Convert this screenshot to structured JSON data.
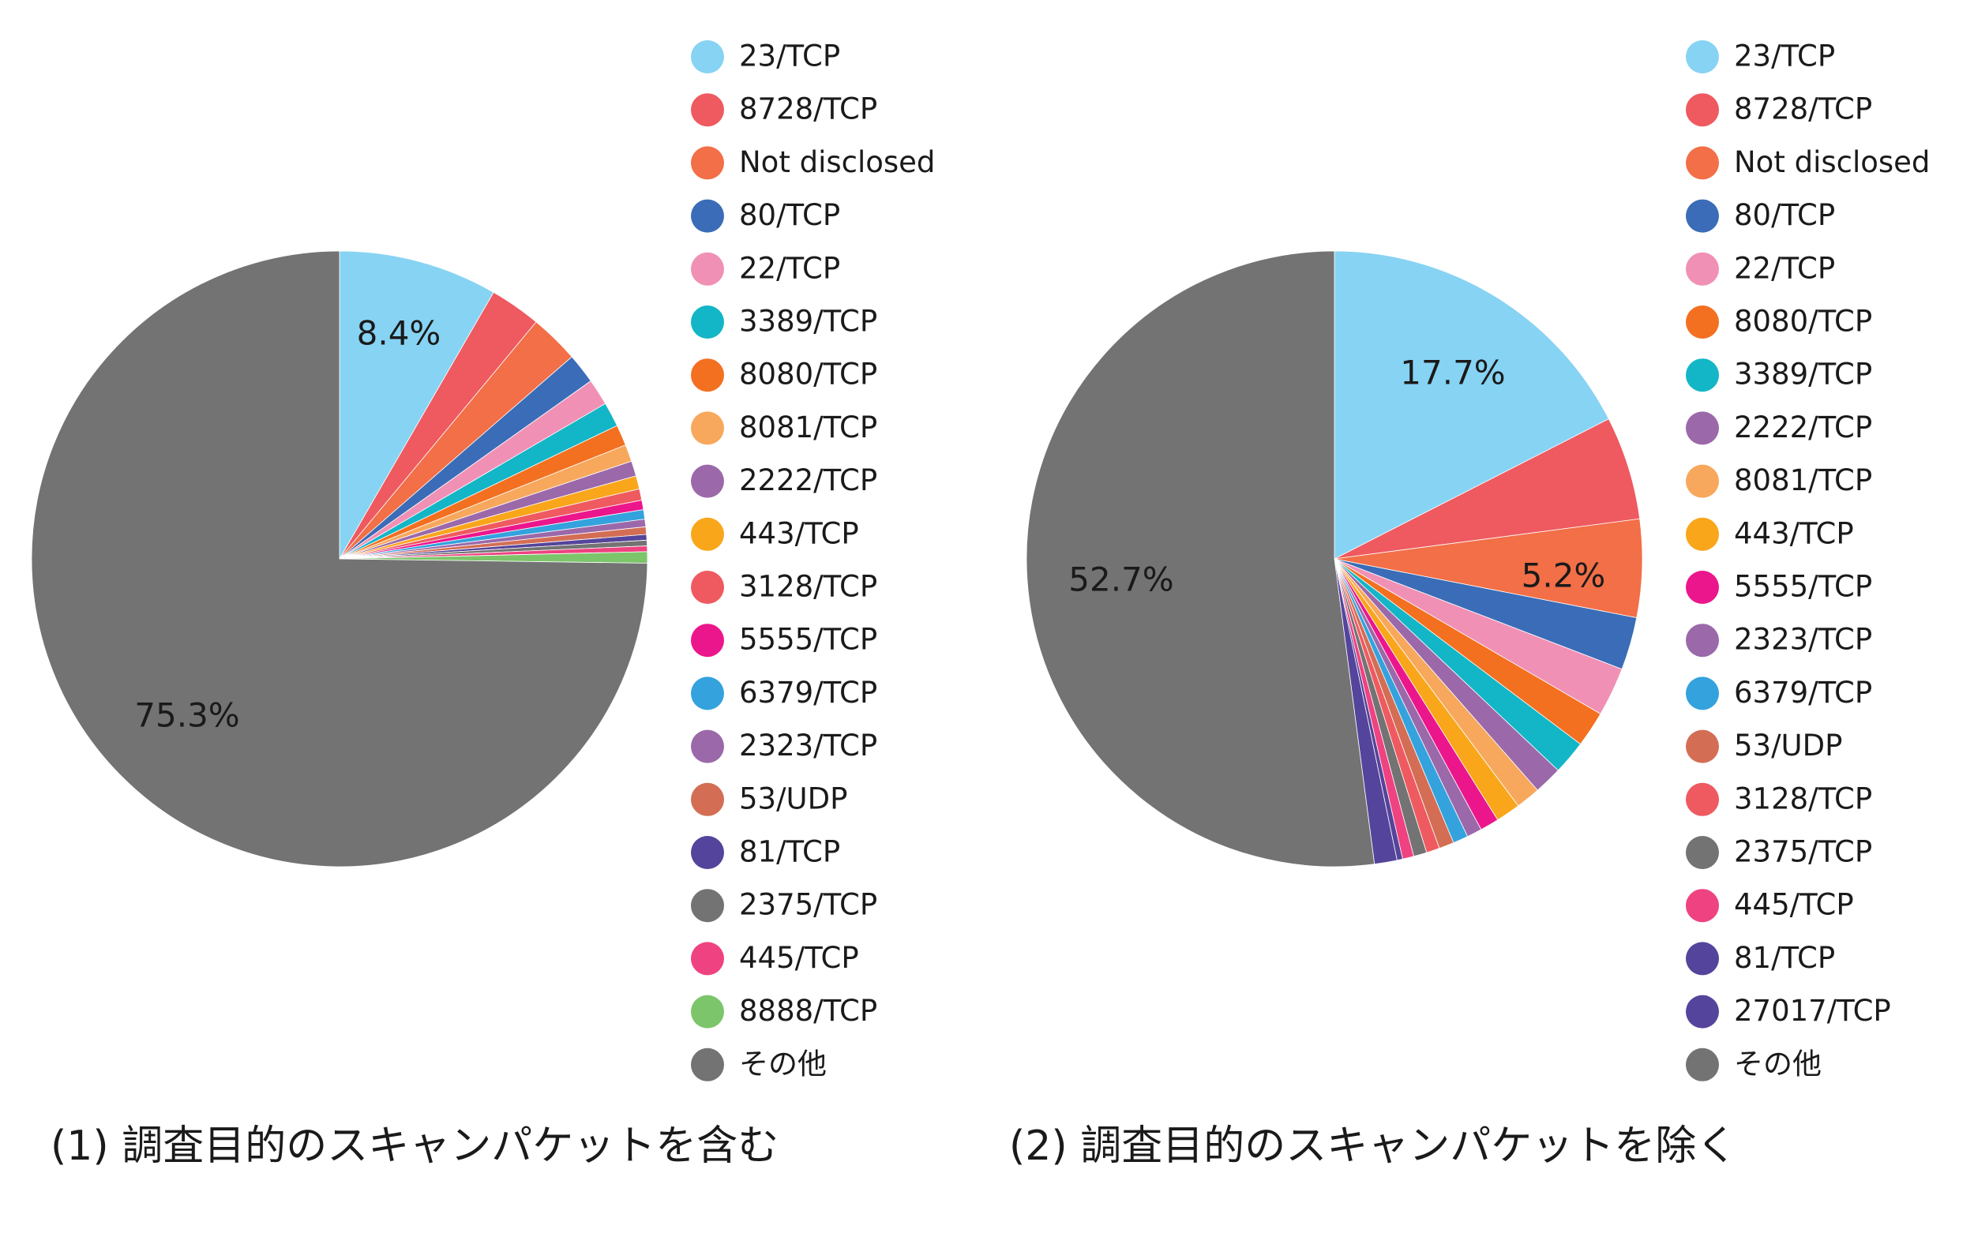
{
  "chart_data": [
    {
      "type": "pie",
      "title": "(1) 調査目的のスキャンパケットを含む",
      "legend_position": "right",
      "slices": [
        {
          "label": "23/TCP",
          "value": 8.4,
          "color": "#87d3f3",
          "display": "8.4%"
        },
        {
          "label": "8728/TCP",
          "value": 2.7,
          "color": "#ee5a60"
        },
        {
          "label": "Not disclosed",
          "value": 2.6,
          "color": "#f26f47"
        },
        {
          "label": "80/TCP",
          "value": 1.6,
          "color": "#3b6cb7"
        },
        {
          "label": "22/TCP",
          "value": 1.4,
          "color": "#f190b5"
        },
        {
          "label": "3389/TCP",
          "value": 1.3,
          "color": "#13b6c6"
        },
        {
          "label": "8080/TCP",
          "value": 1.1,
          "color": "#f37021"
        },
        {
          "label": "8081/TCP",
          "value": 0.9,
          "color": "#f7a85c"
        },
        {
          "label": "2222/TCP",
          "value": 0.8,
          "color": "#9b69aa"
        },
        {
          "label": "443/TCP",
          "value": 0.7,
          "color": "#f9a61b"
        },
        {
          "label": "3128/TCP",
          "value": 0.6,
          "color": "#ee5a60"
        },
        {
          "label": "5555/TCP",
          "value": 0.5,
          "color": "#ec168c"
        },
        {
          "label": "6379/TCP",
          "value": 0.5,
          "color": "#34a2dd"
        },
        {
          "label": "2323/TCP",
          "value": 0.4,
          "color": "#9b69aa"
        },
        {
          "label": "53/UDP",
          "value": 0.4,
          "color": "#d36e55"
        },
        {
          "label": "81/TCP",
          "value": 0.3,
          "color": "#55449b"
        },
        {
          "label": "2375/TCP",
          "value": 0.3,
          "color": "#737373"
        },
        {
          "label": "445/TCP",
          "value": 0.3,
          "color": "#ef4281"
        },
        {
          "label": "8888/TCP",
          "value": 0.6,
          "color": "#7cc56a"
        },
        {
          "label": "その他",
          "value": 75.3,
          "color": "#737373",
          "display": "75.3%"
        }
      ]
    },
    {
      "type": "pie",
      "title": "(2) 調査目的のスキャンパケットを除く",
      "legend_position": "right",
      "slices": [
        {
          "label": "23/TCP",
          "value": 17.7,
          "color": "#87d3f3",
          "display": "17.7%"
        },
        {
          "label": "8728/TCP",
          "value": 5.5,
          "color": "#ee5a60"
        },
        {
          "label": "Not disclosed",
          "value": 5.2,
          "color": "#f26f47",
          "display": "5.2%"
        },
        {
          "label": "80/TCP",
          "value": 2.8,
          "color": "#3b6cb7"
        },
        {
          "label": "22/TCP",
          "value": 2.6,
          "color": "#f190b5"
        },
        {
          "label": "8080/TCP",
          "value": 1.9,
          "color": "#f37021"
        },
        {
          "label": "3389/TCP",
          "value": 1.8,
          "color": "#13b6c6"
        },
        {
          "label": "2222/TCP",
          "value": 1.5,
          "color": "#9b69aa"
        },
        {
          "label": "8081/TCP",
          "value": 1.3,
          "color": "#f7a85c"
        },
        {
          "label": "443/TCP",
          "value": 1.3,
          "color": "#f9a61b"
        },
        {
          "label": "5555/TCP",
          "value": 1.0,
          "color": "#ec168c"
        },
        {
          "label": "2323/TCP",
          "value": 0.8,
          "color": "#9b69aa"
        },
        {
          "label": "6379/TCP",
          "value": 0.8,
          "color": "#34a2dd"
        },
        {
          "label": "53/UDP",
          "value": 0.8,
          "color": "#d36e55"
        },
        {
          "label": "3128/TCP",
          "value": 0.7,
          "color": "#ee5a60"
        },
        {
          "label": "2375/TCP",
          "value": 0.7,
          "color": "#737373"
        },
        {
          "label": "445/TCP",
          "value": 0.6,
          "color": "#ef4281"
        },
        {
          "label": "81/TCP",
          "value": 0.3,
          "color": "#55449b"
        },
        {
          "label": "27017/TCP",
          "value": 1.2,
          "color": "#55449b"
        },
        {
          "label": "その他",
          "value": 52.7,
          "color": "#737373",
          "display": "52.7%"
        }
      ]
    }
  ]
}
